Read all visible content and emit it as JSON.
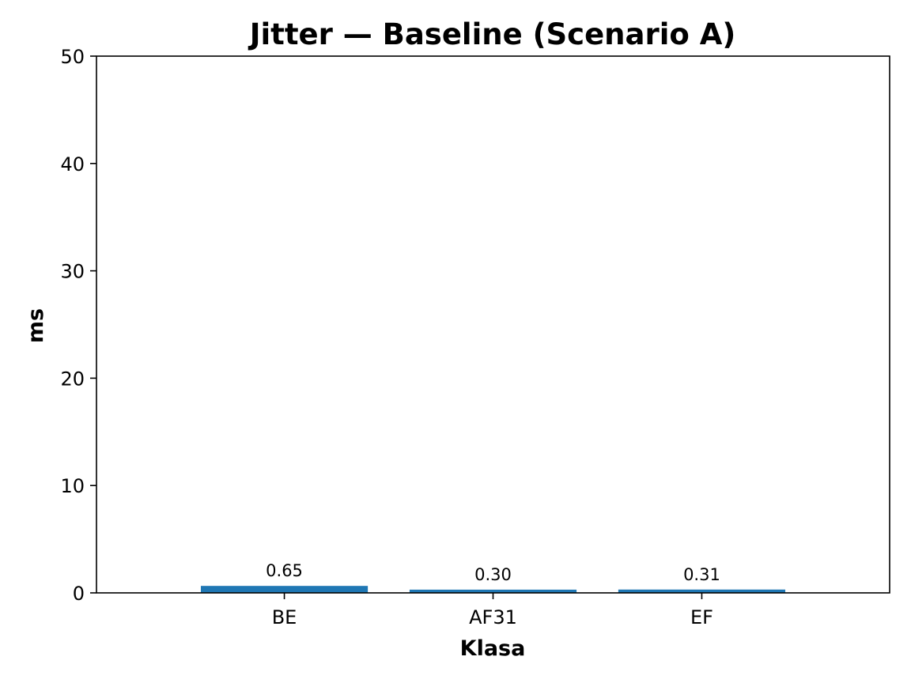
{
  "chart_data": {
    "type": "bar",
    "title": "Jitter — Baseline (Scenario A)",
    "xlabel": "Klasa",
    "ylabel": "ms",
    "categories": [
      "BE",
      "AF31",
      "EF"
    ],
    "values": [
      0.65,
      0.3,
      0.31
    ],
    "data_labels": [
      "0.65",
      "0.30",
      "0.31"
    ],
    "ylim": [
      0,
      50
    ],
    "yticks": [
      0,
      10,
      20,
      30,
      40,
      50
    ],
    "grid": false,
    "legend": "none",
    "bar_color": "#1f77b4"
  }
}
